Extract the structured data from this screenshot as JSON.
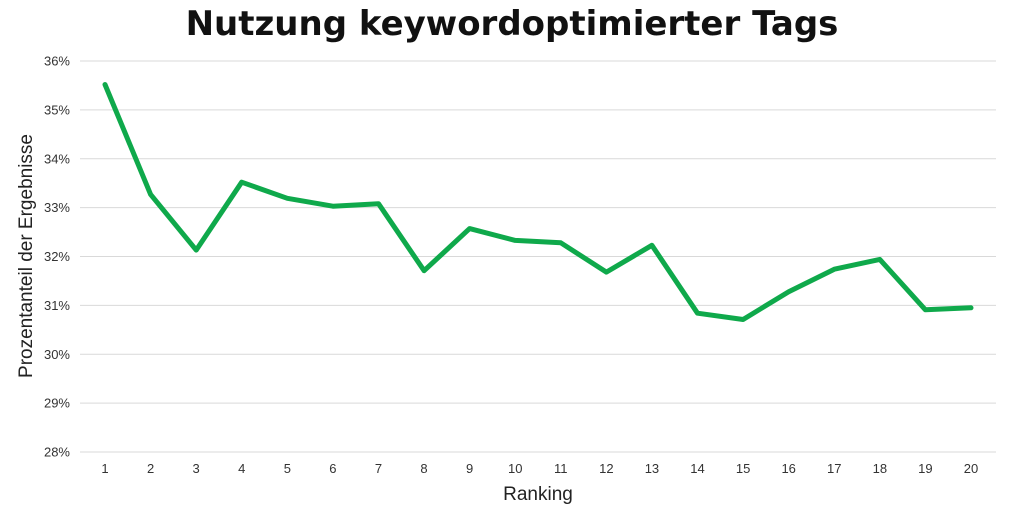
{
  "chart_data": {
    "type": "line",
    "title": "Nutzung keywordoptimierter Tags",
    "xlabel": "Ranking",
    "ylabel": "Prozentanteil der Ergebnisse",
    "x": [
      1,
      2,
      3,
      4,
      5,
      6,
      7,
      8,
      9,
      10,
      11,
      12,
      13,
      14,
      15,
      16,
      17,
      18,
      19,
      20
    ],
    "y_ticks": [
      28,
      29,
      30,
      31,
      32,
      33,
      34,
      35,
      36
    ],
    "y_tick_suffix": "%",
    "ylim": [
      28,
      36
    ],
    "grid": true,
    "series": [
      {
        "color": "#0fa94b",
        "values": [
          35.52,
          33.27,
          32.13,
          33.52,
          33.19,
          33.03,
          33.08,
          31.71,
          32.57,
          32.33,
          32.28,
          31.68,
          32.23,
          30.84,
          30.71,
          31.28,
          31.74,
          31.94,
          30.91,
          30.95
        ]
      }
    ]
  }
}
